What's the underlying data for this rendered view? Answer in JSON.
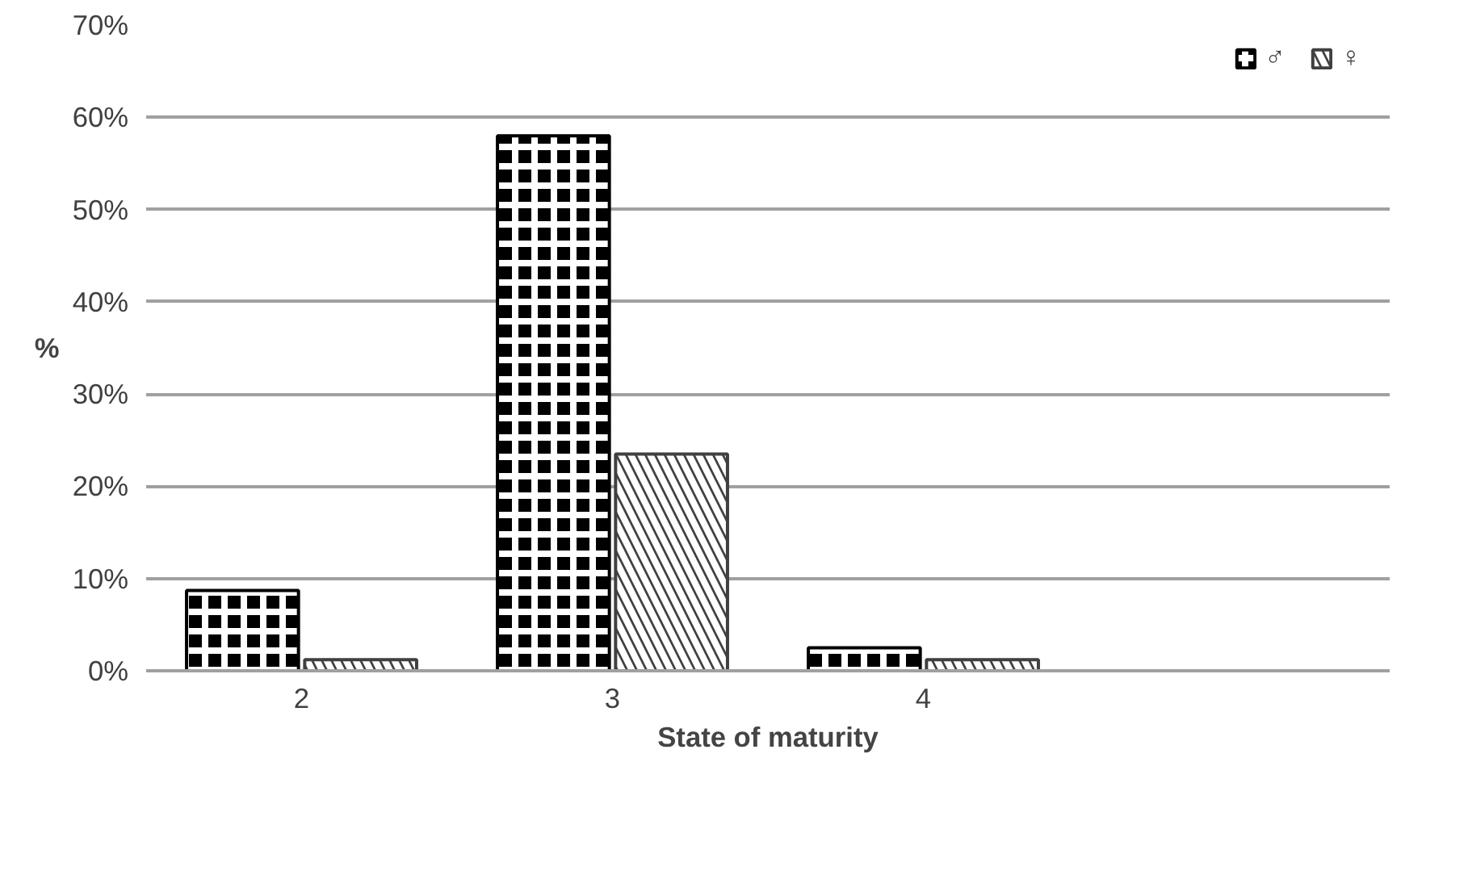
{
  "chart_data": {
    "type": "bar",
    "xlabel": "State of maturity",
    "ylabel": "%",
    "categories": [
      "2",
      "3",
      "4",
      null
    ],
    "series": [
      {
        "name": "♂",
        "color": "#000000",
        "values": [
          8.7,
          58,
          2.5,
          null
        ]
      },
      {
        "name": "♀",
        "color": "#404040",
        "values": [
          1.2,
          23.5,
          1.2,
          null
        ]
      }
    ],
    "ylim": [
      0,
      70
    ],
    "yticks": [
      {
        "value": 0,
        "label": "0%"
      },
      {
        "value": 10,
        "label": "10%"
      },
      {
        "value": 20,
        "label": "20%"
      },
      {
        "value": 30,
        "label": "30%"
      },
      {
        "value": 40,
        "label": "40%"
      },
      {
        "value": 50,
        "label": "50%"
      },
      {
        "value": 60,
        "label": "60%"
      },
      {
        "value": 70,
        "label": "70%"
      }
    ],
    "grid": "y",
    "legend": "top right"
  }
}
